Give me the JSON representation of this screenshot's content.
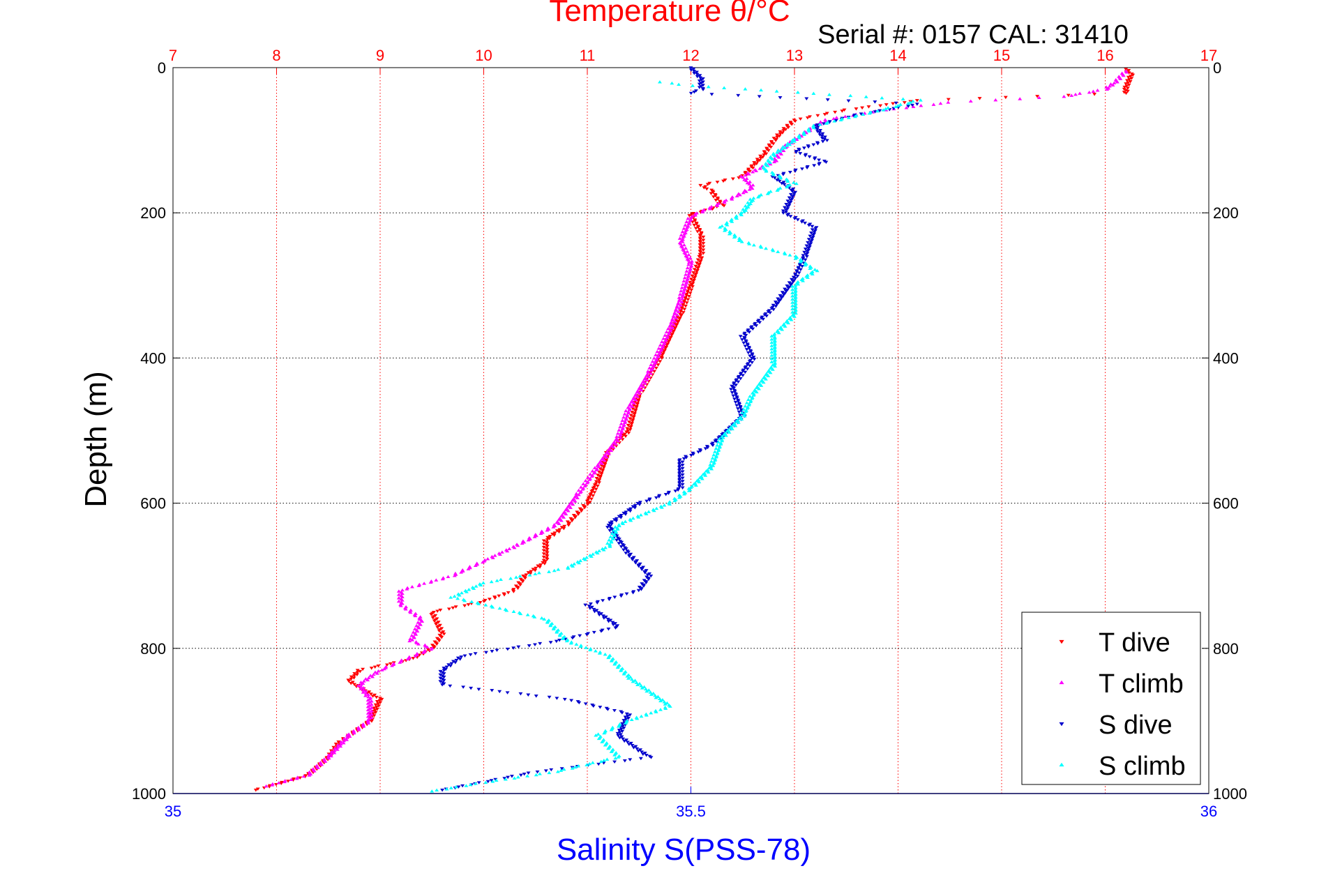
{
  "chart_data": {
    "type": "scatter",
    "title": "Temperature θ/°C",
    "subtitle": "Serial #: 0157  CAL: 31410",
    "xlabel": "Salinity S(PSS-78)",
    "ylabel": "Depth (m)",
    "x_top_ticks": [
      "7",
      "8",
      "9",
      "10",
      "11",
      "12",
      "13",
      "14",
      "15",
      "16",
      "17"
    ],
    "x_bottom_ticks": [
      "35",
      "35.5",
      "36"
    ],
    "y_ticks": [
      "0",
      "200",
      "400",
      "600",
      "800",
      "1000"
    ],
    "xlim_temperature": [
      7,
      17
    ],
    "xlim_salinity": [
      35,
      36
    ],
    "ylim_depth": [
      0,
      1000
    ],
    "y_reversed": true,
    "grid": true,
    "legend_position": "bottom-right",
    "colors": {
      "temperature_axis": "#ff0000",
      "salinity_axis": "#0000ff",
      "t_dive": "#ff0000",
      "t_climb": "#ff00ff",
      "s_dive": "#0000cc",
      "s_climb": "#00ffff"
    },
    "series": [
      {
        "name": "T dive",
        "axis": "temperature",
        "marker": "triangle-down",
        "color": "#ff0000",
        "points": [
          [
            16.2,
            2
          ],
          [
            16.25,
            10
          ],
          [
            16.2,
            28
          ],
          [
            16.2,
            35
          ],
          [
            14.2,
            45
          ],
          [
            13.5,
            58
          ],
          [
            13.0,
            72
          ],
          [
            12.9,
            85
          ],
          [
            12.8,
            100
          ],
          [
            12.7,
            120
          ],
          [
            12.6,
            135
          ],
          [
            12.5,
            150
          ],
          [
            12.1,
            162
          ],
          [
            12.2,
            170
          ],
          [
            12.3,
            190
          ],
          [
            12.0,
            202
          ],
          [
            12.1,
            230
          ],
          [
            12.1,
            260
          ],
          [
            12.0,
            300
          ],
          [
            11.9,
            340
          ],
          [
            11.7,
            400
          ],
          [
            11.5,
            450
          ],
          [
            11.4,
            500
          ],
          [
            11.2,
            530
          ],
          [
            11.1,
            570
          ],
          [
            11.0,
            600
          ],
          [
            10.8,
            630
          ],
          [
            10.6,
            650
          ],
          [
            10.6,
            680
          ],
          [
            10.4,
            700
          ],
          [
            10.3,
            720
          ],
          [
            10.0,
            735
          ],
          [
            9.5,
            750
          ],
          [
            9.6,
            780
          ],
          [
            9.5,
            800
          ],
          [
            9.3,
            815
          ],
          [
            8.8,
            830
          ],
          [
            8.7,
            845
          ],
          [
            9.0,
            870
          ],
          [
            8.9,
            900
          ],
          [
            8.6,
            930
          ],
          [
            8.5,
            950
          ],
          [
            8.3,
            975
          ],
          [
            7.8,
            995
          ]
        ]
      },
      {
        "name": "T climb",
        "axis": "temperature",
        "marker": "triangle-up",
        "color": "#ff00ff",
        "points": [
          [
            16.2,
            5
          ],
          [
            16.1,
            20
          ],
          [
            16.0,
            30
          ],
          [
            15.6,
            40
          ],
          [
            14.5,
            48
          ],
          [
            13.8,
            60
          ],
          [
            13.3,
            72
          ],
          [
            13.1,
            90
          ],
          [
            12.9,
            110
          ],
          [
            12.8,
            130
          ],
          [
            12.5,
            150
          ],
          [
            12.6,
            165
          ],
          [
            12.4,
            180
          ],
          [
            12.0,
            205
          ],
          [
            11.9,
            240
          ],
          [
            12.0,
            270
          ],
          [
            11.9,
            320
          ],
          [
            11.8,
            360
          ],
          [
            11.6,
            420
          ],
          [
            11.4,
            470
          ],
          [
            11.3,
            510
          ],
          [
            11.1,
            550
          ],
          [
            10.9,
            590
          ],
          [
            10.7,
            630
          ],
          [
            10.3,
            660
          ],
          [
            10.0,
            680
          ],
          [
            9.7,
            700
          ],
          [
            9.2,
            720
          ],
          [
            9.2,
            740
          ],
          [
            9.4,
            760
          ],
          [
            9.3,
            790
          ],
          [
            9.5,
            800
          ],
          [
            9.0,
            830
          ],
          [
            8.8,
            850
          ],
          [
            8.9,
            870
          ],
          [
            8.9,
            900
          ],
          [
            8.7,
            920
          ],
          [
            8.5,
            950
          ],
          [
            8.3,
            975
          ],
          [
            7.9,
            990
          ]
        ]
      },
      {
        "name": "S dive",
        "axis": "salinity",
        "marker": "triangle-down",
        "color": "#0000cc",
        "points": [
          [
            35.5,
            0
          ],
          [
            35.51,
            15
          ],
          [
            35.51,
            30
          ],
          [
            35.5,
            35
          ],
          [
            35.72,
            50
          ],
          [
            35.66,
            65
          ],
          [
            35.62,
            80
          ],
          [
            35.63,
            100
          ],
          [
            35.6,
            115
          ],
          [
            35.63,
            130
          ],
          [
            35.58,
            150
          ],
          [
            35.6,
            170
          ],
          [
            35.59,
            200
          ],
          [
            35.62,
            220
          ],
          [
            35.61,
            260
          ],
          [
            35.6,
            290
          ],
          [
            35.58,
            330
          ],
          [
            35.55,
            370
          ],
          [
            35.56,
            400
          ],
          [
            35.54,
            440
          ],
          [
            35.55,
            480
          ],
          [
            35.52,
            520
          ],
          [
            35.49,
            540
          ],
          [
            35.49,
            580
          ],
          [
            35.45,
            600
          ],
          [
            35.42,
            630
          ],
          [
            35.44,
            670
          ],
          [
            35.46,
            700
          ],
          [
            35.45,
            720
          ],
          [
            35.4,
            740
          ],
          [
            35.43,
            770
          ],
          [
            35.37,
            790
          ],
          [
            35.28,
            810
          ],
          [
            35.26,
            830
          ],
          [
            35.26,
            850
          ],
          [
            35.38,
            870
          ],
          [
            35.44,
            890
          ],
          [
            35.43,
            920
          ],
          [
            35.46,
            950
          ],
          [
            35.35,
            970
          ],
          [
            35.26,
            995
          ]
        ]
      },
      {
        "name": "S climb",
        "axis": "salinity",
        "marker": "triangle-up",
        "color": "#00ffff",
        "points": [
          [
            35.47,
            20
          ],
          [
            35.5,
            25
          ],
          [
            35.72,
            45
          ],
          [
            35.68,
            60
          ],
          [
            35.62,
            80
          ],
          [
            35.6,
            100
          ],
          [
            35.58,
            120
          ],
          [
            35.57,
            140
          ],
          [
            35.6,
            160
          ],
          [
            35.56,
            180
          ],
          [
            35.55,
            200
          ],
          [
            35.53,
            220
          ],
          [
            35.55,
            240
          ],
          [
            35.6,
            260
          ],
          [
            35.62,
            280
          ],
          [
            35.6,
            300
          ],
          [
            35.6,
            340
          ],
          [
            35.58,
            370
          ],
          [
            35.58,
            410
          ],
          [
            35.56,
            450
          ],
          [
            35.55,
            480
          ],
          [
            35.53,
            510
          ],
          [
            35.52,
            550
          ],
          [
            35.5,
            580
          ],
          [
            35.48,
            600
          ],
          [
            35.43,
            630
          ],
          [
            35.42,
            660
          ],
          [
            35.38,
            690
          ],
          [
            35.3,
            710
          ],
          [
            35.27,
            730
          ],
          [
            35.36,
            760
          ],
          [
            35.38,
            790
          ],
          [
            35.42,
            810
          ],
          [
            35.44,
            840
          ],
          [
            35.48,
            880
          ],
          [
            35.44,
            900
          ],
          [
            35.41,
            920
          ],
          [
            35.43,
            950
          ],
          [
            35.37,
            970
          ],
          [
            35.3,
            985
          ],
          [
            35.25,
            997
          ]
        ]
      }
    ],
    "legend": [
      "T dive",
      "T climb",
      "S dive",
      "S climb"
    ]
  }
}
